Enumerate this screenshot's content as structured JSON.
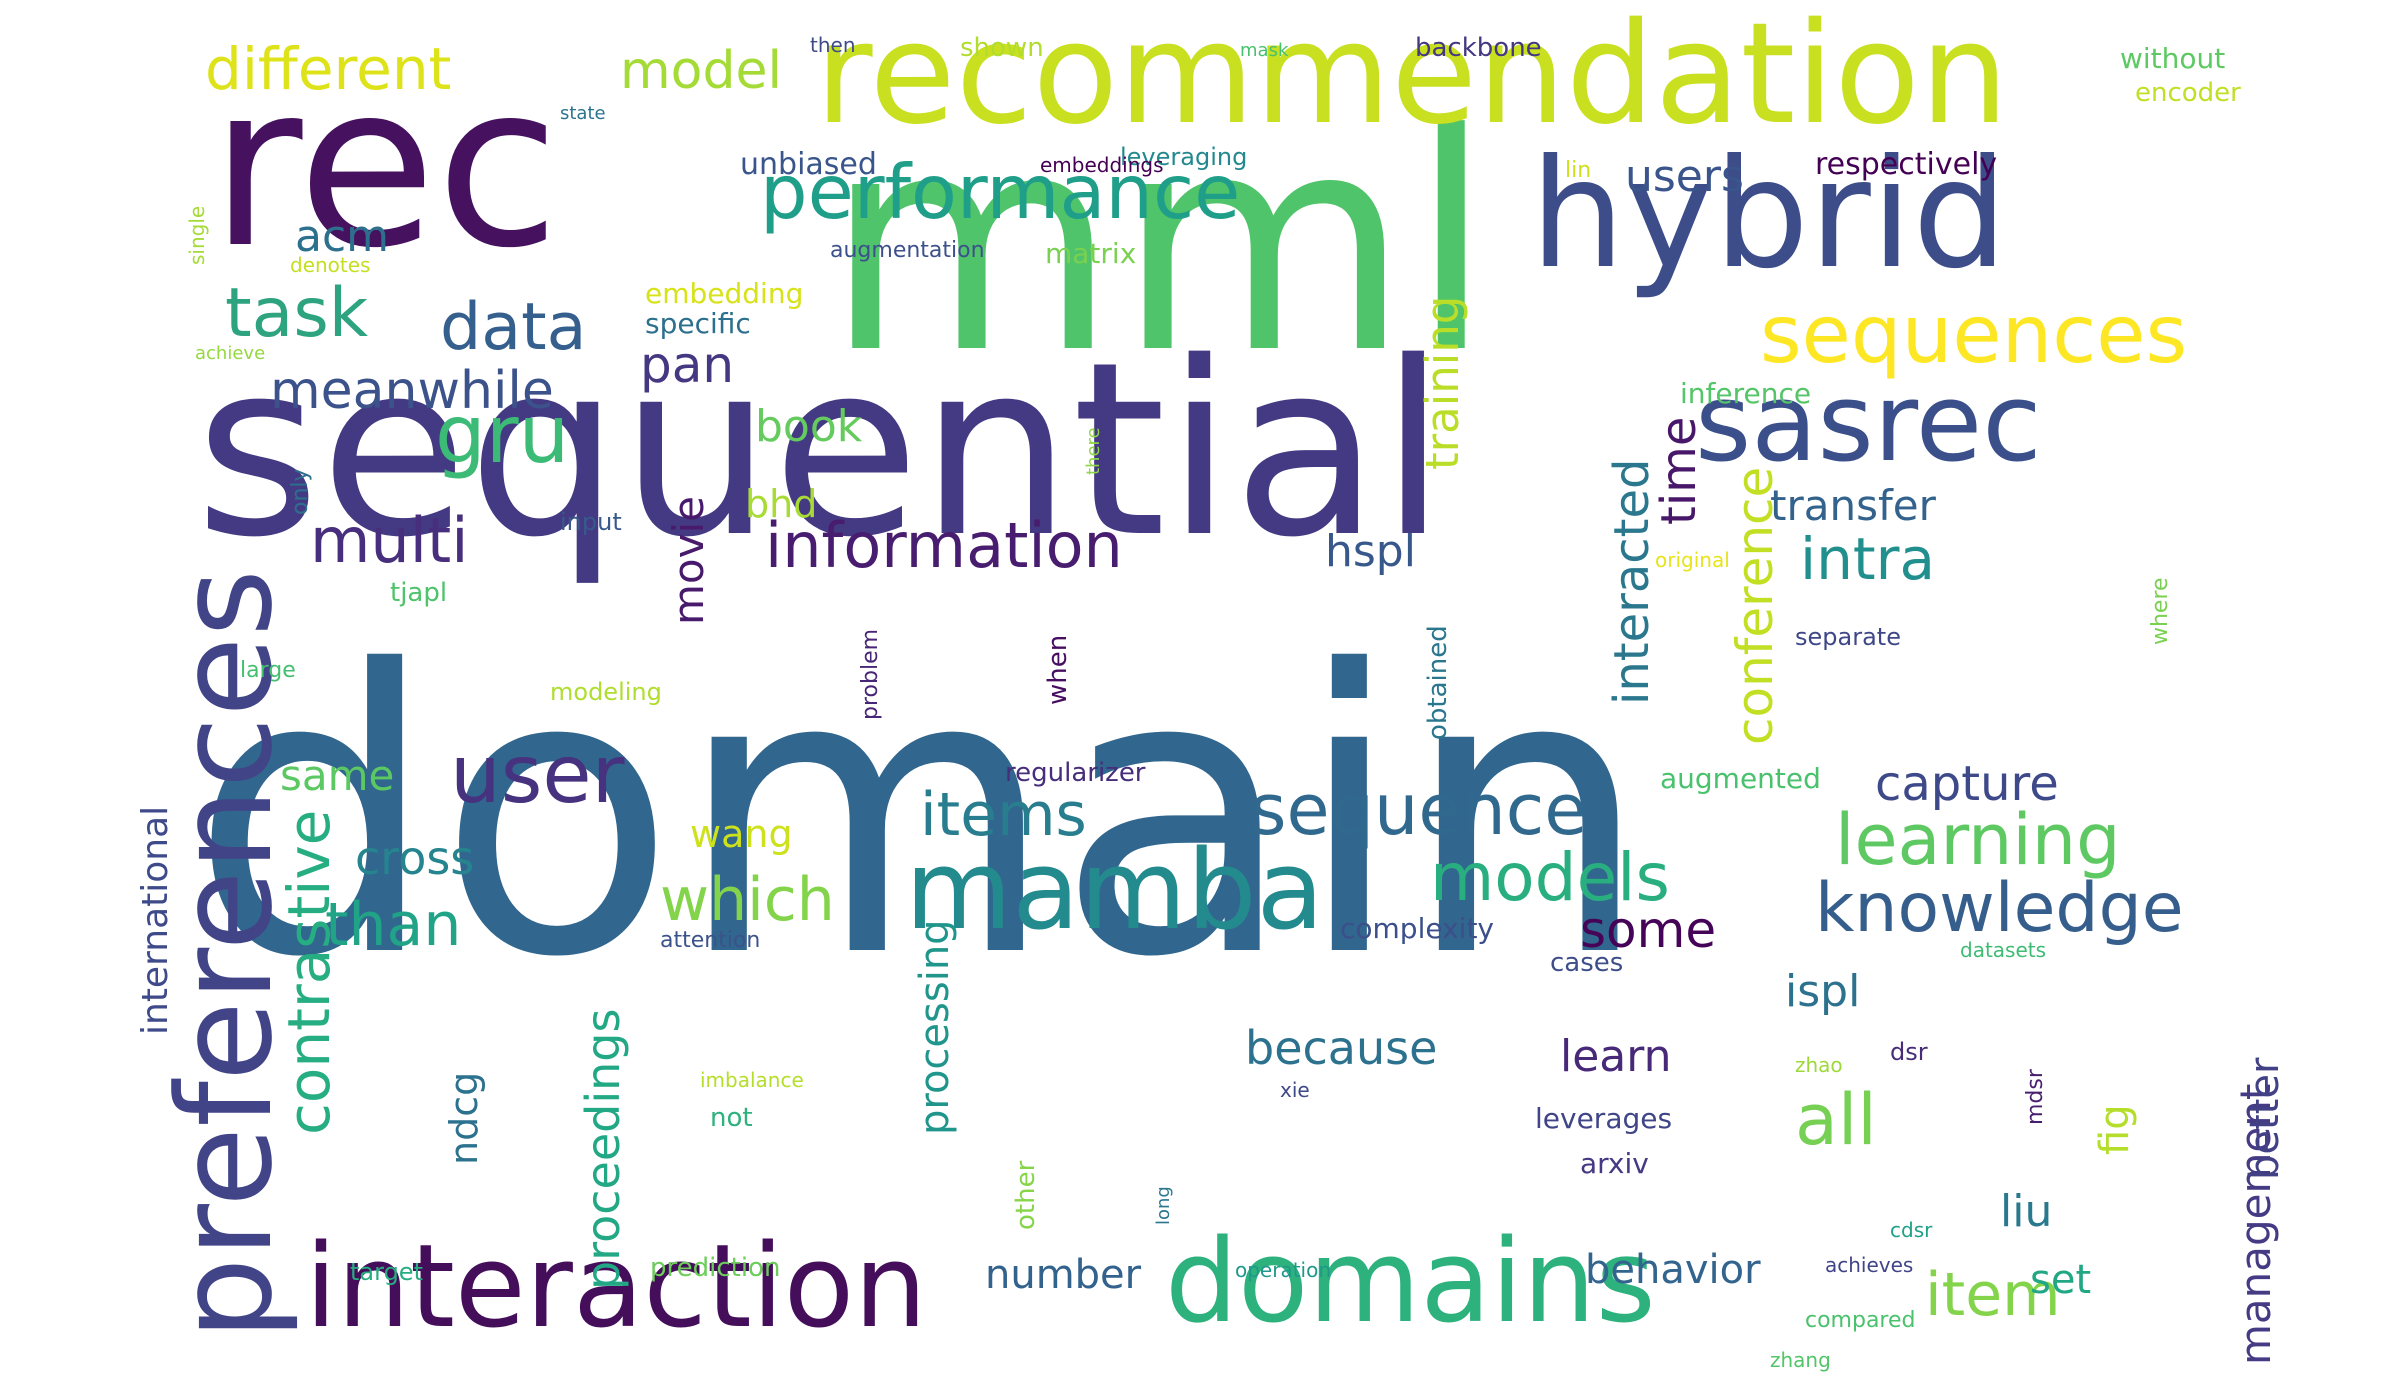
{
  "cloud": {
    "words": [
      {
        "text": "domain",
        "color": "#31668e"
      },
      {
        "text": "sequential",
        "color": "#443a83"
      },
      {
        "text": "mml",
        "color": "#4fc46a"
      },
      {
        "text": "rec",
        "color": "#46125f"
      },
      {
        "text": "recommendation",
        "color": "#c8e020"
      },
      {
        "text": "hybrid",
        "color": "#3d4d8a"
      },
      {
        "text": "preferences",
        "color": "#414487"
      },
      {
        "text": "interaction",
        "color": "#440e5b"
      },
      {
        "text": "domains",
        "color": "#2db27d"
      },
      {
        "text": "mamba",
        "color": "#238a8d"
      },
      {
        "text": "performance",
        "color": "#1f9e89"
      },
      {
        "text": "sasrec",
        "color": "#3b4f8a"
      },
      {
        "text": "sequences",
        "color": "#fde725"
      },
      {
        "text": "different",
        "color": "#dde318"
      },
      {
        "text": "data",
        "color": "#355f8d"
      },
      {
        "text": "gru",
        "color": "#3bbb75"
      },
      {
        "text": "user",
        "color": "#46327e"
      },
      {
        "text": "information",
        "color": "#481d6f"
      },
      {
        "text": "sequence",
        "color": "#30688e"
      },
      {
        "text": "learning",
        "color": "#5ec962"
      },
      {
        "text": "knowledge",
        "color": "#355e8d"
      },
      {
        "text": "models",
        "color": "#29af7f"
      },
      {
        "text": "items",
        "color": "#287d8e"
      },
      {
        "text": "multi",
        "color": "#472f7d"
      },
      {
        "text": "model",
        "color": "#a5db36"
      },
      {
        "text": "task",
        "color": "#2ea37f"
      },
      {
        "text": "meanwhile",
        "color": "#3b528b"
      },
      {
        "text": "contrastive",
        "color": "#26ad81"
      },
      {
        "text": "which",
        "color": "#84d44b"
      },
      {
        "text": "than",
        "color": "#20a386"
      },
      {
        "text": "all",
        "color": "#75d054"
      },
      {
        "text": "item",
        "color": "#84d44b"
      },
      {
        "text": "intra",
        "color": "#218f8d"
      },
      {
        "text": "time",
        "color": "#481769"
      },
      {
        "text": "conference",
        "color": "#c2df23"
      },
      {
        "text": "interacted",
        "color": "#2a778e"
      },
      {
        "text": "training",
        "color": "#bade28"
      },
      {
        "text": "proceedings",
        "color": "#22a884"
      },
      {
        "text": "movie",
        "color": "#481a6c"
      },
      {
        "text": "pan",
        "color": "#453781"
      },
      {
        "text": "acm",
        "color": "#2d708e"
      },
      {
        "text": "hspl",
        "color": "#38588c"
      },
      {
        "text": "capture",
        "color": "#3e4989"
      },
      {
        "text": "some",
        "color": "#450457"
      },
      {
        "text": "cross",
        "color": "#25848e"
      },
      {
        "text": "because",
        "color": "#2c728e"
      },
      {
        "text": "ispl",
        "color": "#2c718e"
      },
      {
        "text": "learn",
        "color": "#482878"
      },
      {
        "text": "users",
        "color": "#3a548c"
      },
      {
        "text": "book",
        "color": "#65cb5e"
      },
      {
        "text": "transfer",
        "color": "#33638d"
      },
      {
        "text": "management",
        "color": "#443b84"
      },
      {
        "text": "processing",
        "color": "#1f958b"
      },
      {
        "text": "better",
        "color": "#424186"
      },
      {
        "text": "bhd",
        "color": "#a8db34"
      },
      {
        "text": "same",
        "color": "#5cc863"
      },
      {
        "text": "wang",
        "color": "#cde11d"
      },
      {
        "text": "ndcg",
        "color": "#2c728e"
      },
      {
        "text": "fig",
        "color": "#b5de2b"
      },
      {
        "text": "number",
        "color": "#33638d"
      },
      {
        "text": "behavior",
        "color": "#32648e"
      },
      {
        "text": "set",
        "color": "#22a785"
      },
      {
        "text": "liu",
        "color": "#29798e"
      },
      {
        "text": "international",
        "color": "#3e4a89"
      },
      {
        "text": "unbiased",
        "color": "#39558c"
      },
      {
        "text": "respectively",
        "color": "#440154"
      },
      {
        "text": "complexity",
        "color": "#3c4f8a"
      },
      {
        "text": "leverages",
        "color": "#404588"
      },
      {
        "text": "arxiv",
        "color": "#443983"
      },
      {
        "text": "augmented",
        "color": "#4ac16d"
      },
      {
        "text": "regularizer",
        "color": "#472d7b"
      },
      {
        "text": "embedding",
        "color": "#d8e219"
      },
      {
        "text": "specific",
        "color": "#2d708e"
      },
      {
        "text": "matrix",
        "color": "#7ad151"
      },
      {
        "text": "without",
        "color": "#5ec962"
      },
      {
        "text": "encoder",
        "color": "#c0df25"
      },
      {
        "text": "backbone",
        "color": "#453882"
      },
      {
        "text": "shown",
        "color": "#b2dd2d"
      },
      {
        "text": "then",
        "color": "#3e4c8a"
      },
      {
        "text": "mask",
        "color": "#48c16e"
      },
      {
        "text": "leveraging",
        "color": "#23898e"
      },
      {
        "text": "embeddings",
        "color": "#440154"
      },
      {
        "text": "lin",
        "color": "#cde11d"
      },
      {
        "text": "augmentation",
        "color": "#3c508b"
      },
      {
        "text": "inference",
        "color": "#54c568"
      },
      {
        "text": "input",
        "color": "#38598c"
      },
      {
        "text": "original",
        "color": "#e7e419"
      },
      {
        "text": "separate",
        "color": "#3f4788"
      },
      {
        "text": "obtained",
        "color": "#2a768e"
      },
      {
        "text": "when",
        "color": "#470d60"
      },
      {
        "text": "problem",
        "color": "#482677"
      },
      {
        "text": "tjapl",
        "color": "#4ec36b"
      },
      {
        "text": "large",
        "color": "#44bf70"
      },
      {
        "text": "modeling",
        "color": "#b0dd2f"
      },
      {
        "text": "attention",
        "color": "#3a538b"
      },
      {
        "text": "imbalance",
        "color": "#b5de2b"
      },
      {
        "text": "not",
        "color": "#2db27d"
      },
      {
        "text": "zhao",
        "color": "#9dd93b"
      },
      {
        "text": "dsr",
        "color": "#472c7a"
      },
      {
        "text": "xie",
        "color": "#3e4989"
      },
      {
        "text": "mdsr",
        "color": "#481f70"
      },
      {
        "text": "cases",
        "color": "#3d4e8a"
      },
      {
        "text": "datasets",
        "color": "#3fbc73"
      },
      {
        "text": "other",
        "color": "#86d549"
      },
      {
        "text": "long",
        "color": "#2a778e"
      },
      {
        "text": "operation",
        "color": "#1f988b"
      },
      {
        "text": "target",
        "color": "#27ad81"
      },
      {
        "text": "prediction",
        "color": "#6ccd5a"
      },
      {
        "text": "achieves",
        "color": "#414487"
      },
      {
        "text": "compared",
        "color": "#4ac16d"
      },
      {
        "text": "zhang",
        "color": "#52c569"
      },
      {
        "text": "cdsr",
        "color": "#1fa187"
      },
      {
        "text": "where",
        "color": "#7ad151"
      },
      {
        "text": "there",
        "color": "#8fd744"
      },
      {
        "text": "state",
        "color": "#2b748e"
      },
      {
        "text": "single",
        "color": "#a5db36"
      },
      {
        "text": "denotes",
        "color": "#c5e021"
      },
      {
        "text": "achieve",
        "color": "#95d840"
      },
      {
        "text": "only",
        "color": "#2d708e"
      }
    ]
  }
}
